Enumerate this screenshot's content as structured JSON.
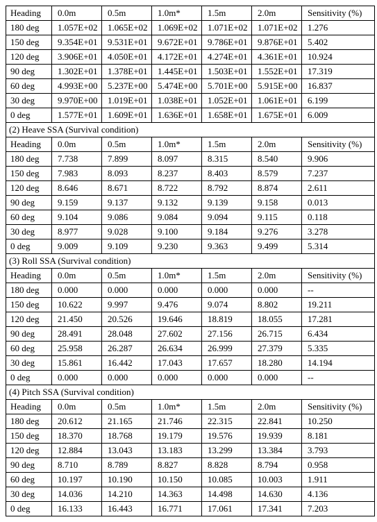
{
  "columns": [
    "Heading",
    "0.0m",
    "0.5m",
    "1.0m*",
    "1.5m",
    "2.0m",
    "Sensitivity (%)"
  ],
  "row_headings": [
    "180 deg",
    "150 deg",
    "120 deg",
    "90 deg",
    "60 deg",
    "30 deg",
    "0 deg"
  ],
  "sections": [
    {
      "title": null,
      "rows": [
        [
          "1.057E+02",
          "1.065E+02",
          "1.069E+02",
          "1.071E+02",
          "1.071E+02",
          "1.276"
        ],
        [
          "9.354E+01",
          "9.531E+01",
          "9.672E+01",
          "9.786E+01",
          "9.876E+01",
          "5.402"
        ],
        [
          "3.906E+01",
          "4.050E+01",
          "4.172E+01",
          "4.274E+01",
          "4.361E+01",
          "10.924"
        ],
        [
          "1.302E+01",
          "1.378E+01",
          "1.445E+01",
          "1.503E+01",
          "1.552E+01",
          "17.319"
        ],
        [
          "4.993E+00",
          "5.237E+00",
          "5.474E+00",
          "5.701E+00",
          "5.915E+00",
          "16.837"
        ],
        [
          "9.970E+00",
          "1.019E+01",
          "1.038E+01",
          "1.052E+01",
          "1.061E+01",
          "6.199"
        ],
        [
          "1.577E+01",
          "1.609E+01",
          "1.636E+01",
          "1.658E+01",
          "1.675E+01",
          "6.009"
        ]
      ]
    },
    {
      "title": "(2) Heave SSA (Survival condition)",
      "rows": [
        [
          "7.738",
          "7.899",
          "8.097",
          "8.315",
          "8.540",
          "9.906"
        ],
        [
          "7.983",
          "8.093",
          "8.237",
          "8.403",
          "8.579",
          "7.237"
        ],
        [
          "8.646",
          "8.671",
          "8.722",
          "8.792",
          "8.874",
          "2.611"
        ],
        [
          "9.159",
          "9.137",
          "9.132",
          "9.139",
          "9.158",
          "0.013"
        ],
        [
          "9.104",
          "9.086",
          "9.084",
          "9.094",
          "9.115",
          "0.118"
        ],
        [
          "8.977",
          "9.028",
          "9.100",
          "9.184",
          "9.276",
          "3.278"
        ],
        [
          "9.009",
          "9.109",
          "9.230",
          "9.363",
          "9.499",
          "5.314"
        ]
      ]
    },
    {
      "title": "(3) Roll SSA (Survival condition)",
      "rows": [
        [
          "0.000",
          "0.000",
          "0.000",
          "0.000",
          "0.000",
          "--"
        ],
        [
          "10.622",
          "9.997",
          "9.476",
          "9.074",
          "8.802",
          "19.211"
        ],
        [
          "21.450",
          "20.526",
          "19.646",
          "18.819",
          "18.055",
          "17.281"
        ],
        [
          "28.491",
          "28.048",
          "27.602",
          "27.156",
          "26.715",
          "6.434"
        ],
        [
          "25.958",
          "26.287",
          "26.634",
          "26.999",
          "27.379",
          "5.335"
        ],
        [
          "15.861",
          "16.442",
          "17.043",
          "17.657",
          "18.280",
          "14.194"
        ],
        [
          "0.000",
          "0.000",
          "0.000",
          "0.000",
          "0.000",
          "--"
        ]
      ]
    },
    {
      "title": "(4) Pitch SSA (Survival condition)",
      "rows": [
        [
          "20.612",
          "21.165",
          "21.746",
          "22.315",
          "22.841",
          "10.250"
        ],
        [
          "18.370",
          "18.768",
          "19.179",
          "19.576",
          "19.939",
          "8.181"
        ],
        [
          "12.884",
          "13.043",
          "13.183",
          "13.299",
          "13.384",
          "3.793"
        ],
        [
          "8.710",
          "8.789",
          "8.827",
          "8.828",
          "8.794",
          "0.958"
        ],
        [
          "10.197",
          "10.190",
          "10.150",
          "10.085",
          "10.003",
          "1.911"
        ],
        [
          "14.036",
          "14.210",
          "14.363",
          "14.498",
          "14.630",
          "4.136"
        ],
        [
          "16.133",
          "16.443",
          "16.771",
          "17.061",
          "17.341",
          "7.203"
        ]
      ]
    }
  ]
}
